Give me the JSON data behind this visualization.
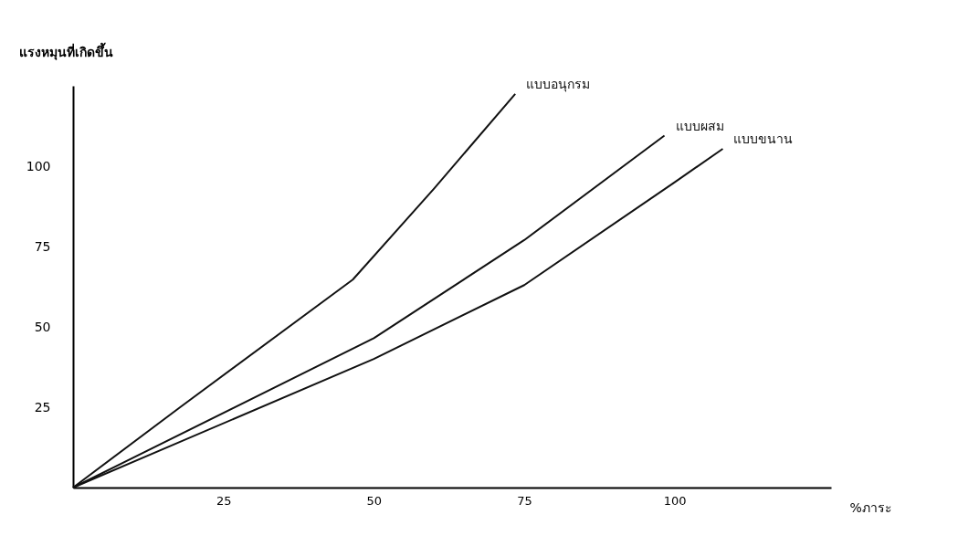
{
  "chart_data": {
    "type": "line",
    "ylabel": "แรงหมุนที่เกิดขึ้น",
    "xlabel": "%ภาระ",
    "xlim": [
      0,
      126
    ],
    "ylim": [
      0,
      125
    ],
    "xticks": [
      25,
      50,
      75,
      100
    ],
    "yticks": [
      25,
      50,
      75,
      100
    ],
    "grid": false,
    "legend": false,
    "marker": "none",
    "line_style": "solid",
    "series": [
      {
        "name": "แบบอนุกรม",
        "color": "#111111",
        "x": [
          0,
          17.8,
          46.5,
          60,
          73.5
        ],
        "values": [
          0,
          25,
          64.7,
          93,
          122.5
        ]
      },
      {
        "name": "แบบผสม",
        "color": "#111111",
        "x": [
          0,
          50,
          75,
          98.3
        ],
        "values": [
          0,
          46.5,
          77,
          109.5
        ]
      },
      {
        "name": "แบบขนาน",
        "color": "#111111",
        "x": [
          0,
          50,
          75,
          100,
          108
        ],
        "values": [
          0,
          40,
          63,
          95,
          105.4
        ]
      }
    ]
  }
}
